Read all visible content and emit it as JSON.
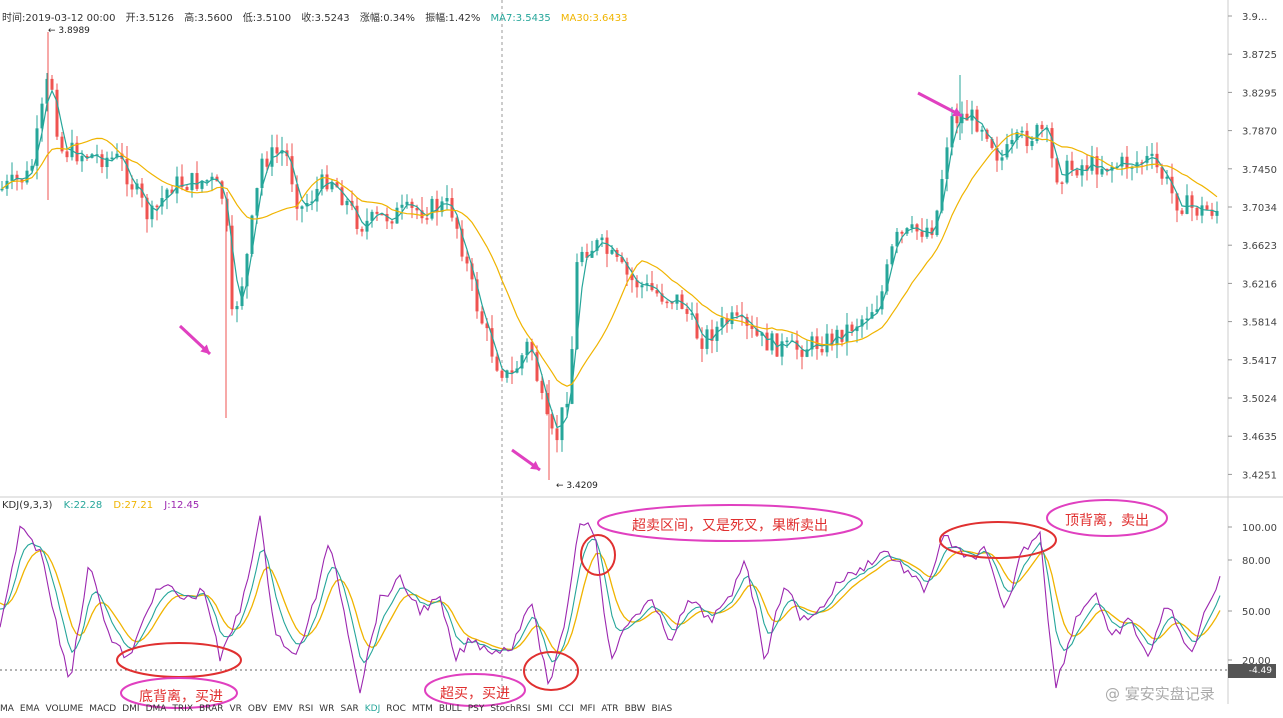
{
  "header": {
    "time": "时间:2019-03-12 00:00",
    "open": "开:3.5126",
    "high": "高:3.5600",
    "low": "低:3.5100",
    "close": "收:3.5243",
    "change": "涨幅:0.34%",
    "amplitude": "振幅:1.42%",
    "ma7": "MA7:3.5435",
    "ma30": "MA30:3.6433"
  },
  "price_axis": [
    "3.9...",
    "3.8725",
    "3.8295",
    "3.7870",
    "3.7450",
    "3.7034",
    "3.6623",
    "3.6216",
    "3.5814",
    "3.5417",
    "3.5024",
    "3.4635",
    "3.4251"
  ],
  "price_labels": {
    "high": "← 3.8989",
    "low": "← 3.4209"
  },
  "kdj_header": {
    "title": "KDJ(9,3,3)",
    "k": "K:22.28",
    "d": "D:27.21",
    "j": "J:12.45"
  },
  "kdj_axis": [
    "100.00",
    "80.00",
    "50.00",
    "20.00"
  ],
  "badge": "-4.49",
  "annotations": {
    "bottom_divergence": "底背离，买进",
    "oversold_buy": "超买，买进",
    "overbought_sell": "超卖区间，又是死叉，果断卖出",
    "top_divergence": "顶背离，卖出"
  },
  "watermark": "@ 宴安实盘记录",
  "indicators": [
    "MA",
    "EMA",
    "VOLUME",
    "MACD",
    "DMI",
    "DMA",
    "TRIX",
    "BRAR",
    "VR",
    "OBV",
    "EMV",
    "RSI",
    "WR",
    "SAR",
    "KDJ",
    "ROC",
    "MTM",
    "BULL",
    "PSY",
    "StochRSI",
    "SMI",
    "CCI",
    "MFI",
    "ATR",
    "BBW",
    "BIAS"
  ],
  "active_indicator": "KDJ",
  "colors": {
    "up": "#26a69a",
    "down": "#ef5350",
    "ma7": "#26a69a",
    "ma30": "#f0b400",
    "k": "#26a69a",
    "d": "#f0b400",
    "j": "#9c27b0",
    "annotation": "#e03030",
    "arrow": "#e040c0"
  }
}
